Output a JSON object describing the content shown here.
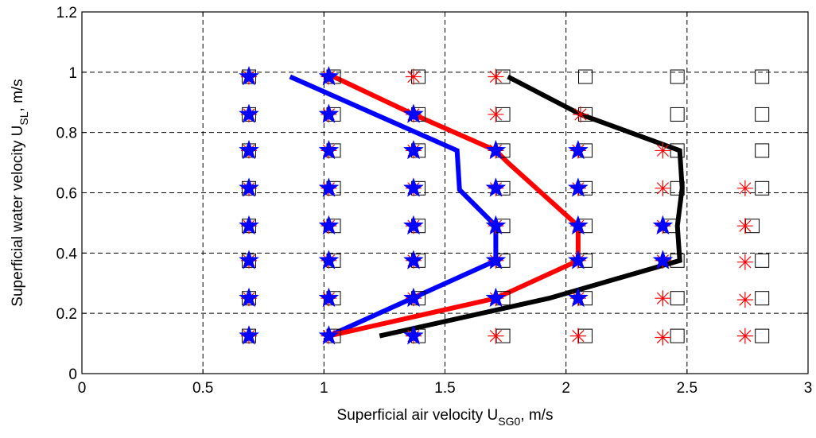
{
  "chart_data": {
    "type": "scatter",
    "title": "",
    "xlabel": {
      "prefix": "Superficial air velocity U",
      "subscript": "SG0",
      "suffix": ", m/s"
    },
    "ylabel": {
      "prefix": "Superficial water velocity U",
      "subscript": "SL",
      "suffix": ", m/s"
    },
    "xlim": [
      0,
      3
    ],
    "ylim": [
      0,
      1.2
    ],
    "xticks": [
      0,
      0.5,
      1,
      1.5,
      2,
      2.5,
      3
    ],
    "xtick_labels": [
      "0",
      "0.5",
      "1",
      "1.5",
      "2",
      "2.5",
      "3"
    ],
    "yticks": [
      0,
      0.2,
      0.4,
      0.6,
      0.8,
      1.0,
      1.2
    ],
    "ytick_labels": [
      "0",
      "0.2",
      "0.4",
      "0.6",
      "0.8",
      "1",
      "1.2"
    ],
    "grid": true,
    "marker_series": [
      {
        "marker": "square",
        "color": "#000000",
        "points": [
          [
            0.69,
            0.125
          ],
          [
            1.04,
            0.125
          ],
          [
            1.39,
            0.125
          ],
          [
            1.74,
            0.125
          ],
          [
            2.08,
            0.125
          ],
          [
            2.46,
            0.125
          ],
          [
            2.81,
            0.125
          ],
          [
            0.69,
            0.25
          ],
          [
            1.04,
            0.25
          ],
          [
            1.39,
            0.25
          ],
          [
            1.74,
            0.25
          ],
          [
            2.08,
            0.25
          ],
          [
            2.46,
            0.25
          ],
          [
            2.81,
            0.25
          ],
          [
            0.69,
            0.375
          ],
          [
            1.04,
            0.375
          ],
          [
            1.39,
            0.375
          ],
          [
            1.74,
            0.375
          ],
          [
            2.08,
            0.375
          ],
          [
            2.46,
            0.375
          ],
          [
            2.81,
            0.375
          ],
          [
            0.69,
            0.49
          ],
          [
            1.04,
            0.49
          ],
          [
            1.39,
            0.49
          ],
          [
            1.74,
            0.49
          ],
          [
            2.08,
            0.49
          ],
          [
            2.43,
            0.49
          ],
          [
            2.77,
            0.49
          ],
          [
            0.69,
            0.615
          ],
          [
            1.04,
            0.615
          ],
          [
            1.39,
            0.615
          ],
          [
            1.74,
            0.615
          ],
          [
            2.08,
            0.615
          ],
          [
            2.46,
            0.615
          ],
          [
            2.81,
            0.615
          ],
          [
            0.69,
            0.74
          ],
          [
            1.04,
            0.74
          ],
          [
            1.39,
            0.74
          ],
          [
            1.74,
            0.74
          ],
          [
            2.08,
            0.74
          ],
          [
            2.46,
            0.74
          ],
          [
            2.81,
            0.74
          ],
          [
            0.69,
            0.86
          ],
          [
            1.04,
            0.86
          ],
          [
            1.39,
            0.86
          ],
          [
            1.74,
            0.86
          ],
          [
            2.08,
            0.86
          ],
          [
            2.46,
            0.86
          ],
          [
            2.81,
            0.86
          ],
          [
            0.69,
            0.985
          ],
          [
            1.04,
            0.985
          ],
          [
            1.39,
            0.985
          ],
          [
            1.74,
            0.985
          ],
          [
            2.08,
            0.985
          ],
          [
            2.46,
            0.985
          ],
          [
            2.81,
            0.985
          ]
        ]
      },
      {
        "marker": "asterisk",
        "color": "#ff0000",
        "points": [
          [
            0.69,
            0.125
          ],
          [
            1.02,
            0.125
          ],
          [
            1.37,
            0.125
          ],
          [
            1.71,
            0.125
          ],
          [
            2.05,
            0.125
          ],
          [
            2.4,
            0.12
          ],
          [
            2.74,
            0.125
          ],
          [
            0.69,
            0.25
          ],
          [
            1.02,
            0.25
          ],
          [
            1.37,
            0.25
          ],
          [
            1.71,
            0.25
          ],
          [
            2.05,
            0.25
          ],
          [
            2.4,
            0.25
          ],
          [
            2.74,
            0.245
          ],
          [
            0.69,
            0.375
          ],
          [
            1.02,
            0.375
          ],
          [
            1.37,
            0.375
          ],
          [
            1.71,
            0.375
          ],
          [
            2.05,
            0.375
          ],
          [
            2.4,
            0.375
          ],
          [
            2.74,
            0.37
          ],
          [
            0.69,
            0.49
          ],
          [
            1.02,
            0.49
          ],
          [
            1.37,
            0.49
          ],
          [
            1.71,
            0.49
          ],
          [
            2.05,
            0.49
          ],
          [
            2.4,
            0.49
          ],
          [
            2.74,
            0.49
          ],
          [
            0.69,
            0.615
          ],
          [
            1.02,
            0.615
          ],
          [
            1.37,
            0.615
          ],
          [
            1.71,
            0.615
          ],
          [
            2.05,
            0.615
          ],
          [
            2.4,
            0.615
          ],
          [
            2.74,
            0.615
          ],
          [
            0.69,
            0.74
          ],
          [
            1.02,
            0.74
          ],
          [
            1.37,
            0.74
          ],
          [
            1.71,
            0.74
          ],
          [
            2.05,
            0.74
          ],
          [
            2.4,
            0.74
          ],
          [
            0.69,
            0.86
          ],
          [
            1.02,
            0.86
          ],
          [
            1.37,
            0.86
          ],
          [
            1.71,
            0.86
          ],
          [
            2.06,
            0.86
          ],
          [
            0.69,
            0.985
          ],
          [
            1.02,
            0.985
          ],
          [
            1.37,
            0.985
          ],
          [
            1.71,
            0.985
          ]
        ]
      },
      {
        "marker": "star",
        "color": "#0000ff",
        "points": [
          [
            0.69,
            0.125
          ],
          [
            1.02,
            0.125
          ],
          [
            1.37,
            0.125
          ],
          [
            0.69,
            0.25
          ],
          [
            1.02,
            0.25
          ],
          [
            1.37,
            0.25
          ],
          [
            1.71,
            0.25
          ],
          [
            2.05,
            0.25
          ],
          [
            0.69,
            0.375
          ],
          [
            1.02,
            0.375
          ],
          [
            1.37,
            0.375
          ],
          [
            1.71,
            0.375
          ],
          [
            2.05,
            0.375
          ],
          [
            2.4,
            0.375
          ],
          [
            0.69,
            0.49
          ],
          [
            1.02,
            0.49
          ],
          [
            1.37,
            0.49
          ],
          [
            1.71,
            0.49
          ],
          [
            2.05,
            0.49
          ],
          [
            2.4,
            0.49
          ],
          [
            0.69,
            0.615
          ],
          [
            1.02,
            0.615
          ],
          [
            1.37,
            0.615
          ],
          [
            1.71,
            0.615
          ],
          [
            2.05,
            0.615
          ],
          [
            0.69,
            0.74
          ],
          [
            1.02,
            0.74
          ],
          [
            1.37,
            0.74
          ],
          [
            1.71,
            0.74
          ],
          [
            2.05,
            0.74
          ],
          [
            0.69,
            0.86
          ],
          [
            1.02,
            0.86
          ],
          [
            1.37,
            0.86
          ],
          [
            0.69,
            0.985
          ],
          [
            1.02,
            0.985
          ]
        ]
      }
    ],
    "line_series": [
      {
        "color": "#0000ff",
        "points": [
          [
            1.02,
            0.125
          ],
          [
            1.71,
            0.375
          ],
          [
            1.71,
            0.49
          ],
          [
            1.56,
            0.61
          ],
          [
            1.55,
            0.74
          ],
          [
            0.86,
            0.985
          ]
        ]
      },
      {
        "color": "#ff0000",
        "points": [
          [
            1.02,
            0.125
          ],
          [
            1.71,
            0.25
          ],
          [
            2.05,
            0.375
          ],
          [
            2.05,
            0.49
          ],
          [
            1.76,
            0.7
          ],
          [
            1.71,
            0.74
          ],
          [
            1.37,
            0.86
          ],
          [
            1.04,
            0.985
          ]
        ]
      },
      {
        "color": "#000000",
        "points": [
          [
            1.23,
            0.125
          ],
          [
            1.93,
            0.25
          ],
          [
            2.47,
            0.375
          ],
          [
            2.46,
            0.49
          ],
          [
            2.48,
            0.615
          ],
          [
            2.47,
            0.74
          ],
          [
            2.06,
            0.86
          ],
          [
            1.76,
            0.985
          ]
        ]
      }
    ]
  }
}
